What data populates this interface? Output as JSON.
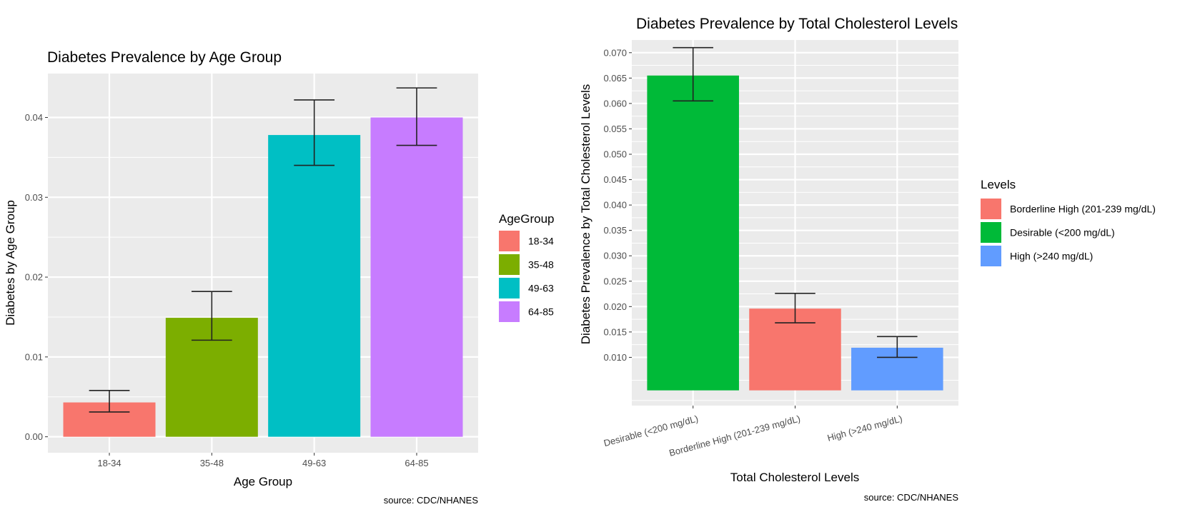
{
  "chart_data": [
    {
      "type": "bar",
      "title": "Diabetes Prevalence by Age Group",
      "xlabel": "Age Group",
      "ylabel": "Diabetes by Age Group",
      "caption": "source: CDC/NHANES",
      "categories": [
        "18-34",
        "35-48",
        "49-63",
        "64-85"
      ],
      "values": [
        0.0043,
        0.0149,
        0.0378,
        0.04
      ],
      "error_low": [
        0.0031,
        0.0121,
        0.034,
        0.0365
      ],
      "error_high": [
        0.0058,
        0.0182,
        0.0422,
        0.0437
      ],
      "ylim": [
        -0.002,
        0.0455
      ],
      "yticks": [
        0.0,
        0.01,
        0.02,
        0.03,
        0.04
      ],
      "ytick_labels": [
        "0.00",
        "0.01",
        "0.02",
        "0.03",
        "0.04"
      ],
      "grid": true,
      "legend": {
        "title": "AgeGroup",
        "placement": "right",
        "entries": [
          {
            "label": "18-34",
            "color": "#F8766D"
          },
          {
            "label": "35-48",
            "color": "#7CAE00"
          },
          {
            "label": "49-63",
            "color": "#00BFC4"
          },
          {
            "label": "64-85",
            "color": "#C77CFF"
          }
        ]
      },
      "colors": [
        "#F8766D",
        "#7CAE00",
        "#00BFC4",
        "#C77CFF"
      ]
    },
    {
      "type": "bar",
      "title": "Diabetes Prevalence by Total Cholesterol Levels",
      "xlabel": "Total Cholesterol Levels",
      "ylabel": "Diabetes Prevalence by Total Cholesterol Levels",
      "caption": "source: CDC/NHANES",
      "categories": [
        "Desirable (<200 mg/dL)",
        "Borderline High (201-239 mg/dL)",
        "High (>240 mg/dL)"
      ],
      "values": [
        0.0655,
        0.0196,
        0.0119
      ],
      "error_low": [
        0.0605,
        0.0168,
        0.01
      ],
      "error_high": [
        0.071,
        0.0226,
        0.0141
      ],
      "ylim": [
        0.0005,
        0.0725
      ],
      "bar_base": 0.0035,
      "yticks": [
        0.01,
        0.015,
        0.02,
        0.025,
        0.03,
        0.035,
        0.04,
        0.045,
        0.05,
        0.055,
        0.06,
        0.065,
        0.07
      ],
      "ytick_labels": [
        "0.010",
        "0.015",
        "0.020",
        "0.025",
        "0.030",
        "0.035",
        "0.040",
        "0.045",
        "0.050",
        "0.055",
        "0.060",
        "0.065",
        "0.070"
      ],
      "grid": true,
      "x_tick_rotation_deg": -15,
      "legend": {
        "title": "Levels",
        "placement": "right",
        "entries": [
          {
            "label": "Borderline High (201-239 mg/dL)",
            "color": "#F8766D"
          },
          {
            "label": "Desirable (<200 mg/dL)",
            "color": "#00BA38"
          },
          {
            "label": "High (>240 mg/dL)",
            "color": "#619CFF"
          }
        ]
      },
      "colors": [
        "#00BA38",
        "#F8766D",
        "#619CFF"
      ]
    }
  ]
}
